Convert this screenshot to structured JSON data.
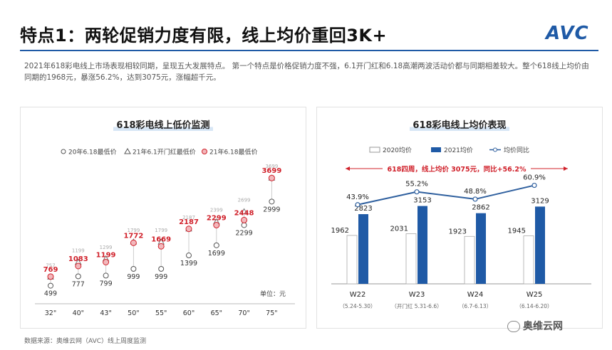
{
  "header": {
    "title": "特点1：两轮促销力度有限，线上均价重回3K+",
    "logo": "AVC",
    "summary": "2021年618彩电线上市场表现相较同期，呈现五大发展特点。 第一个特点是价格促销力度不强，6.1开门红和6.18高潮两波活动价都与同期相差较大。整个618线上均价由同期的1968元，暴涨56.2%，达到3075元，涨幅超千元。"
  },
  "footer": {
    "source": "数据来源：奥维云网（AVC）线上周度监测",
    "wechat": "奥维云网"
  },
  "chart_data": [
    {
      "type": "scatter",
      "title": "618彩电线上低价监测",
      "unit_label": "单位：元",
      "categories": [
        "32\"",
        "40\"",
        "43\"",
        "50\"",
        "55\"",
        "60\"",
        "65\"",
        "70\"",
        "75\""
      ],
      "series": [
        {
          "name": "20年6.18最低价",
          "marker": "circle-open",
          "color": "#555555",
          "values": [
            499,
            777,
            799,
            999,
            999,
            1399,
            1699,
            2299,
            2999
          ]
        },
        {
          "name": "21年6.1开门红最低价",
          "marker": "triangle-open",
          "color": "#555555",
          "values": [
            757,
            1199,
            1299,
            1799,
            1799,
            2187,
            2399,
            2699,
            3699
          ]
        },
        {
          "name": "21年6.18最低价",
          "marker": "circle-filled",
          "color": "#d0202a",
          "values": [
            769,
            1083,
            1199,
            1772,
            1669,
            2187,
            2299,
            2448,
            3699
          ]
        }
      ],
      "legend": "top",
      "ylim": [
        300,
        4000
      ]
    },
    {
      "type": "bar",
      "title": "618彩电线上均价表现",
      "annotation": "618四周，线上均价 3075元，同比+56.2%",
      "categories": [
        "W22",
        "W23",
        "W24",
        "W25"
      ],
      "category_sublabels": [
        "（5.24-5.30）",
        "（开门红 5.31-6.6）",
        "（6.7-6.13）",
        "（6.14-6.20）"
      ],
      "series": [
        {
          "name": "2020均价",
          "color": "#ffffff",
          "values": [
            1962,
            2031,
            1923,
            1945
          ]
        },
        {
          "name": "2021均价",
          "color": "#1f5aa6",
          "values": [
            2823,
            3153,
            2862,
            3129
          ]
        },
        {
          "name": "均价同比",
          "type": "line",
          "color": "#2e5f9e",
          "values": [
            43.9,
            55.2,
            48.8,
            60.9
          ],
          "labels": [
            "43.9%",
            "55.2%",
            "48.8%",
            "60.9%"
          ]
        }
      ],
      "legend": "top",
      "ylim": [
        0,
        3400
      ],
      "y2lim": [
        20,
        70
      ]
    }
  ]
}
